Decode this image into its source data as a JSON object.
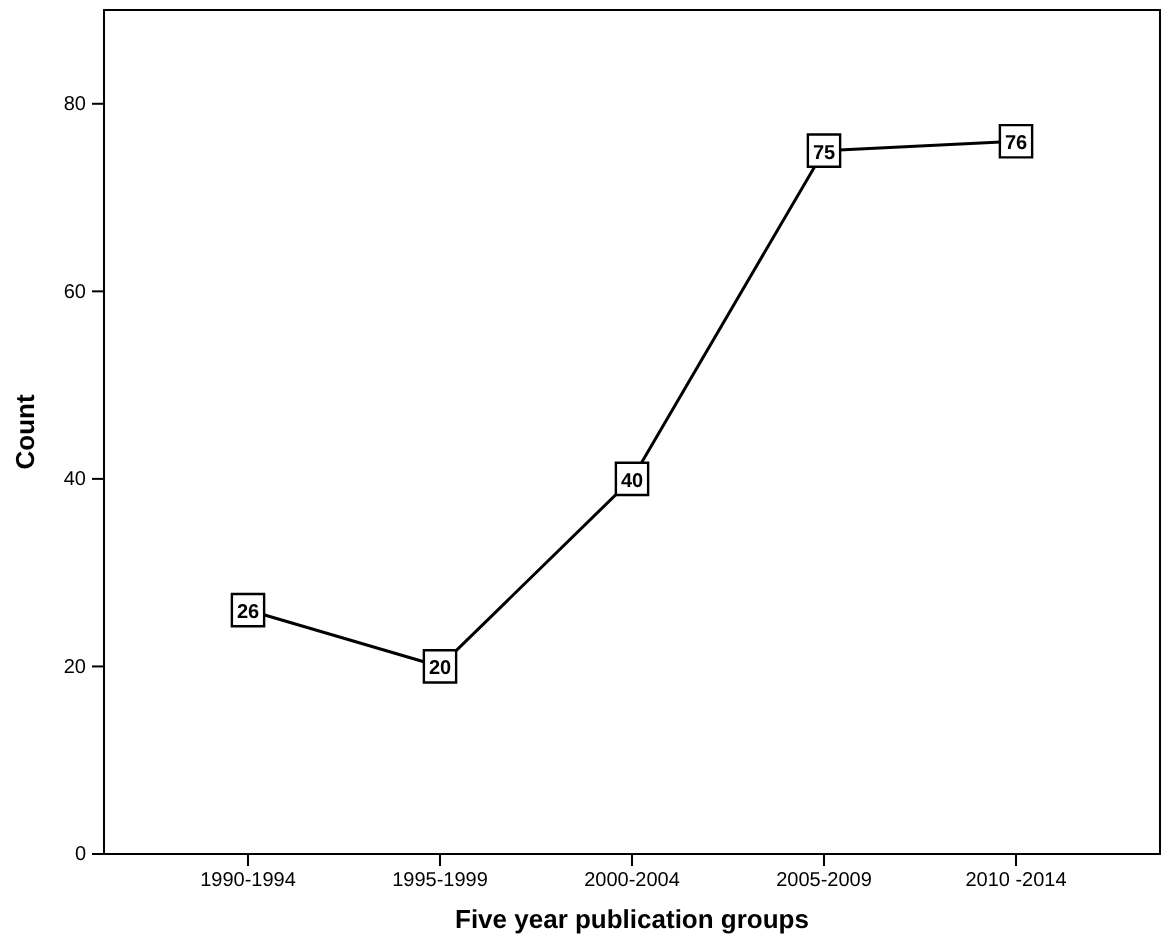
{
  "chart_data": {
    "type": "line",
    "xlabel": "Five year publication groups",
    "ylabel": "Count",
    "categories": [
      "1990-1994",
      "1995-1999",
      "2000-2004",
      "2005-2009",
      "2010 -2014"
    ],
    "series": [
      {
        "color": "#000000",
        "values": [
          26,
          20,
          40,
          75,
          76
        ]
      }
    ],
    "ylim": [
      0,
      90
    ],
    "yticks": [
      0,
      20,
      40,
      60,
      80
    ],
    "marker": "square",
    "data_labels": true,
    "line_style": "solid",
    "grid": false
  }
}
